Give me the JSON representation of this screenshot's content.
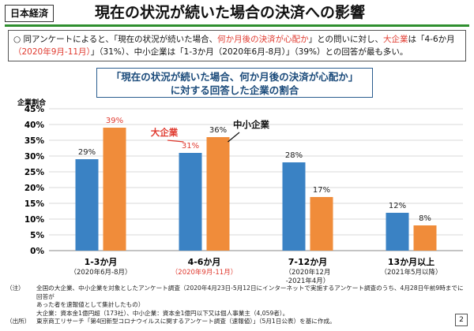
{
  "header": {
    "tag": "日本経済",
    "title": "現在の状況が続いた場合の決済への影響"
  },
  "summary": {
    "line1_a": "○ 同アンケートによると、「現在の状況が続いた場合、",
    "line1_b": "何か月後の決済が心配か",
    "line1_c": "」との問いに対し、",
    "line1_d": "大企業",
    "line1_e": "は「4-6か月",
    "line2_a": "（2020年9月-11月）",
    "line2_b": "」（31%）、中小企業は「1-3か月（2020年6月-8月）」（39%）との回答が最も多い。"
  },
  "chart_title": {
    "line1": "「現在の状況が続いた場合、何か月後の決済が心配か」",
    "line2": "に対する回答した企業の割合"
  },
  "chart_data": {
    "type": "bar",
    "ylabel": "企業割合",
    "ylim": [
      0,
      45
    ],
    "yticks": [
      "0%",
      "5%",
      "10%",
      "15%",
      "20%",
      "25%",
      "30%",
      "35%",
      "40%",
      "45%"
    ],
    "categories": [
      "1-3か月",
      "4-6か月",
      "7-12か月",
      "13か月以上"
    ],
    "category_sublabels": [
      "（2020年6月-8月）",
      "（2020年9月-11月）",
      "（2020年12月\n-2021年4月）",
      "（2021年5月以降）"
    ],
    "series": [
      {
        "name": "大企業",
        "color": "#3a82c4",
        "values": [
          29,
          31,
          28,
          12
        ],
        "labels": [
          "29%",
          "31%",
          "28%",
          "12%"
        ]
      },
      {
        "name": "中小企業",
        "color": "#f08c3a",
        "values": [
          39,
          36,
          17,
          8
        ],
        "labels": [
          "39%",
          "36%",
          "17%",
          "8%"
        ]
      }
    ],
    "highlight_color": "#e03a2f",
    "highlighted_labels": [
      [
        1,
        0
      ],
      [
        0,
        1
      ]
    ],
    "highlighted_category": 1
  },
  "notes": [
    {
      "k": "（注）",
      "t": "全国の大企業、中小企業を対象としたアンケート調査（2020年4月23日-5月12日にインターネットで実施するアンケート調査のうち、4月28日午前9時までに回答が"
    },
    {
      "k": "",
      "t": "あった者を速報値として集計したもの）"
    },
    {
      "k": "",
      "t": "大企業：資本金1億円超（173社）、中小企業：資本金1億円以下又は個人事業主（4,059者）。"
    },
    {
      "k": "（出所）",
      "t": "東京商工リサーチ「第4回新型コロナウイルスに関するアンケート調査（速報値）」（5月1日公表）を基に作成。"
    }
  ],
  "page_number": "2"
}
